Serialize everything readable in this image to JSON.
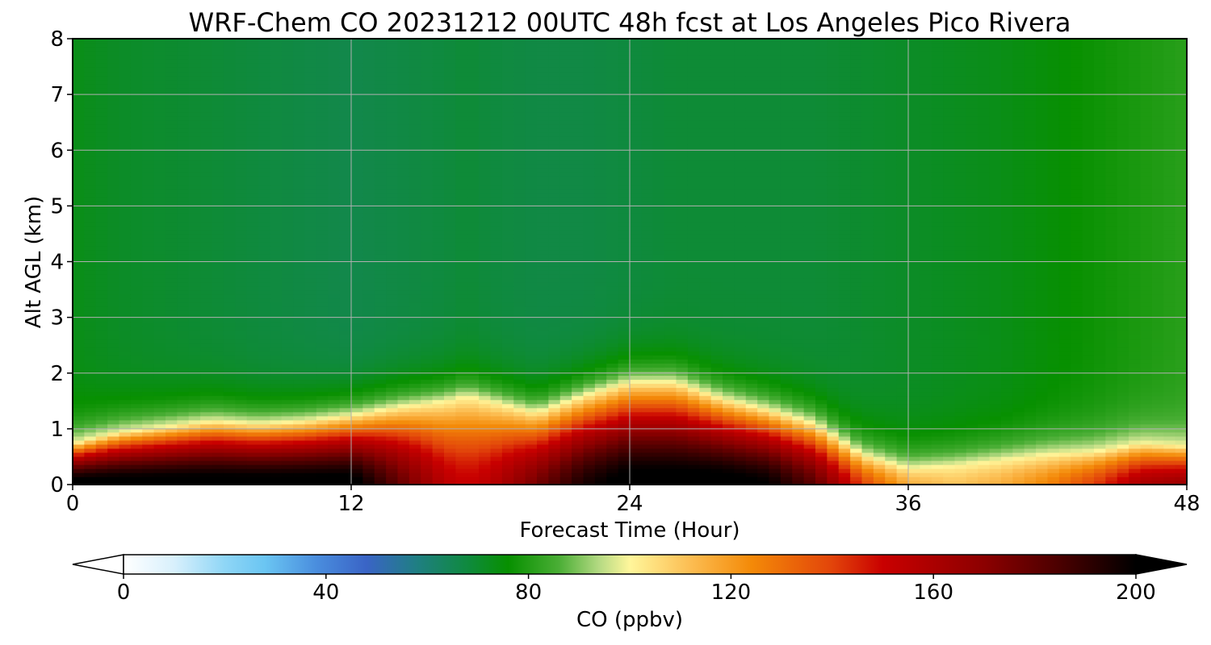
{
  "chart_data": {
    "type": "heatmap",
    "title": "WRF-Chem CO  20231212 00UTC 48h fcst at Los Angeles Pico Rivera",
    "xlabel": "Forecast Time (Hour)",
    "ylabel": "Alt AGL (km)",
    "xlim": [
      0,
      48
    ],
    "ylim": [
      0,
      8
    ],
    "x_ticks": [
      0,
      12,
      24,
      36,
      48
    ],
    "y_ticks": [
      0,
      1,
      2,
      3,
      4,
      5,
      6,
      7,
      8
    ],
    "grid": true,
    "colorbar": {
      "label": "CO  (ppbv)",
      "vmin": 0,
      "vmax": 200,
      "ticks": [
        0,
        40,
        80,
        120,
        160,
        200
      ],
      "extend": "both",
      "color_stops": [
        {
          "v": 0,
          "c": "#ffffff"
        },
        {
          "v": 10,
          "c": "#d8f0fc"
        },
        {
          "v": 20,
          "c": "#8fd6f6"
        },
        {
          "v": 28,
          "c": "#6ac5f2"
        },
        {
          "v": 38,
          "c": "#4a8ede"
        },
        {
          "v": 48,
          "c": "#3a64c6"
        },
        {
          "v": 58,
          "c": "#1f7f82"
        },
        {
          "v": 68,
          "c": "#0f8a3e"
        },
        {
          "v": 76,
          "c": "#079000"
        },
        {
          "v": 86,
          "c": "#4aae35"
        },
        {
          "v": 94,
          "c": "#b5da83"
        },
        {
          "v": 100,
          "c": "#fff69b"
        },
        {
          "v": 112,
          "c": "#fcbd52"
        },
        {
          "v": 124,
          "c": "#f48a08"
        },
        {
          "v": 140,
          "c": "#e2440a"
        },
        {
          "v": 150,
          "c": "#c90000"
        },
        {
          "v": 170,
          "c": "#8c0000"
        },
        {
          "v": 185,
          "c": "#4a0000"
        },
        {
          "v": 200,
          "c": "#000000"
        }
      ]
    },
    "profile_hours": [
      0,
      2,
      4,
      6,
      8,
      10,
      12,
      14,
      16,
      17,
      18,
      20,
      22,
      24,
      26,
      28,
      30,
      32,
      34,
      36,
      38,
      40,
      42,
      44,
      46,
      48
    ],
    "bl_height_km": [
      0.75,
      0.95,
      1.05,
      1.15,
      1.1,
      1.15,
      1.25,
      1.4,
      1.5,
      1.6,
      1.5,
      1.3,
      1.6,
      1.85,
      1.85,
      1.55,
      1.35,
      1.1,
      0.55,
      0.3,
      0.35,
      0.45,
      0.55,
      0.6,
      0.75,
      0.7
    ],
    "surface_co_ppbv": [
      205,
      205,
      205,
      205,
      205,
      205,
      205,
      180,
      155,
      150,
      155,
      175,
      195,
      205,
      205,
      205,
      200,
      180,
      140,
      115,
      110,
      115,
      125,
      140,
      160,
      165
    ],
    "free_trop_co_ppbv": [
      73,
      71,
      70,
      69,
      68,
      67,
      66,
      67,
      68,
      69,
      68,
      67,
      67,
      68,
      69,
      69,
      69,
      69,
      70,
      71,
      72,
      73,
      75,
      77,
      79,
      81
    ]
  }
}
